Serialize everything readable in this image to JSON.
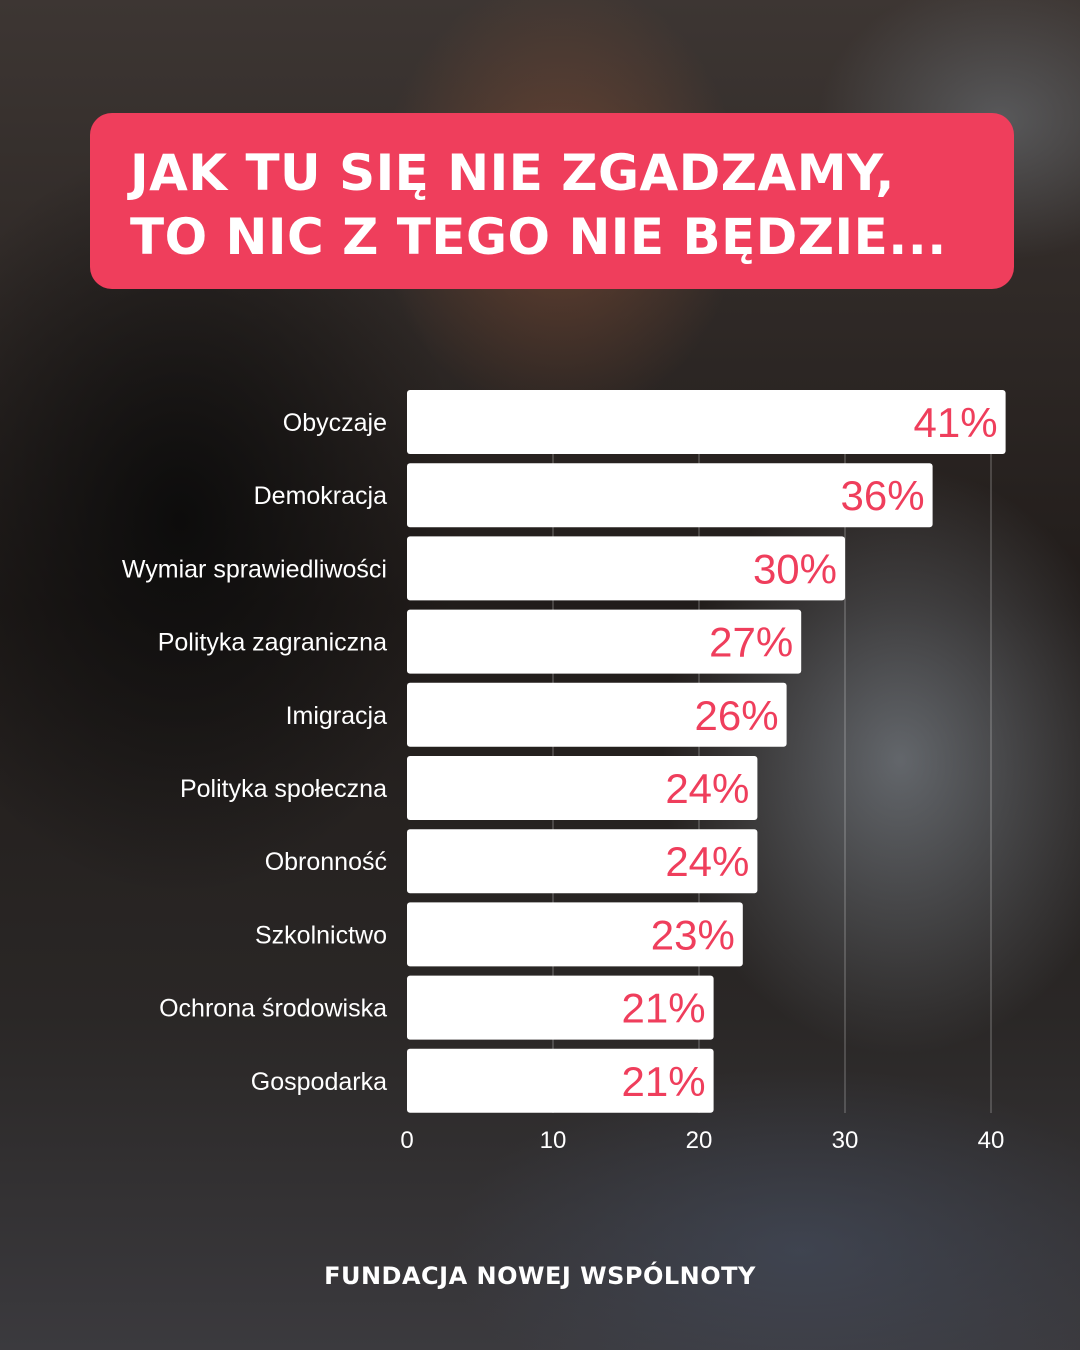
{
  "title": {
    "line1": "JAK TU SIĘ NIE ZGADZAMY,",
    "line2": "TO NIC Z TEGO NIE BĘDZIE..."
  },
  "footer": {
    "brand": "FUNDACJA NOWEJ WSPÓLNOTY"
  },
  "colors": {
    "accent": "#ef3e5c",
    "bar": "#ffffff",
    "label": "#ffffff"
  },
  "chart_data": {
    "type": "bar",
    "orientation": "horizontal",
    "categories": [
      "Obyczaje",
      "Demokracja",
      "Wymiar sprawiedliwości",
      "Polityka zagraniczna",
      "Imigracja",
      "Polityka społeczna",
      "Obronność",
      "Szkolnictwo",
      "Ochrona środowiska",
      "Gospodarka"
    ],
    "values": [
      41,
      36,
      30,
      27,
      26,
      24,
      24,
      23,
      21,
      21
    ],
    "value_labels": [
      "41%",
      "36%",
      "30%",
      "27%",
      "26%",
      "24%",
      "24%",
      "23%",
      "21%",
      "21%"
    ],
    "xlim": [
      0,
      40
    ],
    "xticks": [
      0,
      10,
      20,
      30,
      40
    ],
    "grid": true
  }
}
